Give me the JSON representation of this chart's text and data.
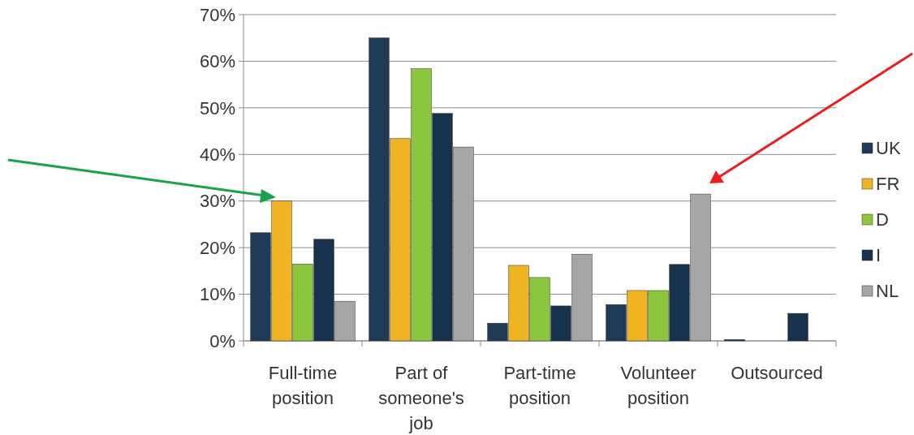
{
  "chart_data": {
    "type": "bar",
    "categories": [
      "Full-time position",
      "Part of someone's job",
      "Part-time position",
      "Volunteer position",
      "Outsourced"
    ],
    "series": [
      {
        "name": "UK",
        "color": "#1f3b57",
        "values": [
          23.2,
          65,
          3.8,
          7.8,
          0.3
        ]
      },
      {
        "name": "FR",
        "color": "#f0b323",
        "values": [
          30,
          43.4,
          16.2,
          10.8,
          0
        ]
      },
      {
        "name": "D",
        "color": "#8cc63f",
        "values": [
          16.5,
          58.4,
          13.6,
          10.8,
          0
        ]
      },
      {
        "name": "I",
        "color": "#17324d",
        "values": [
          21.8,
          48.8,
          7.5,
          16.4,
          5.9
        ]
      },
      {
        "name": "NL",
        "color": "#a6a6a6",
        "values": [
          8.5,
          41.6,
          18.6,
          31.5,
          0
        ]
      }
    ],
    "ylim": [
      0,
      70
    ],
    "yticks": [
      {
        "value": 0,
        "label": "0%"
      },
      {
        "value": 10,
        "label": "10%"
      },
      {
        "value": 20,
        "label": "20%"
      },
      {
        "value": 30,
        "label": "30%"
      },
      {
        "value": 40,
        "label": "40%"
      },
      {
        "value": 50,
        "label": "50%"
      },
      {
        "value": 60,
        "label": "60%"
      },
      {
        "value": 70,
        "label": "70%"
      }
    ],
    "grid": "y",
    "legend": "right"
  }
}
